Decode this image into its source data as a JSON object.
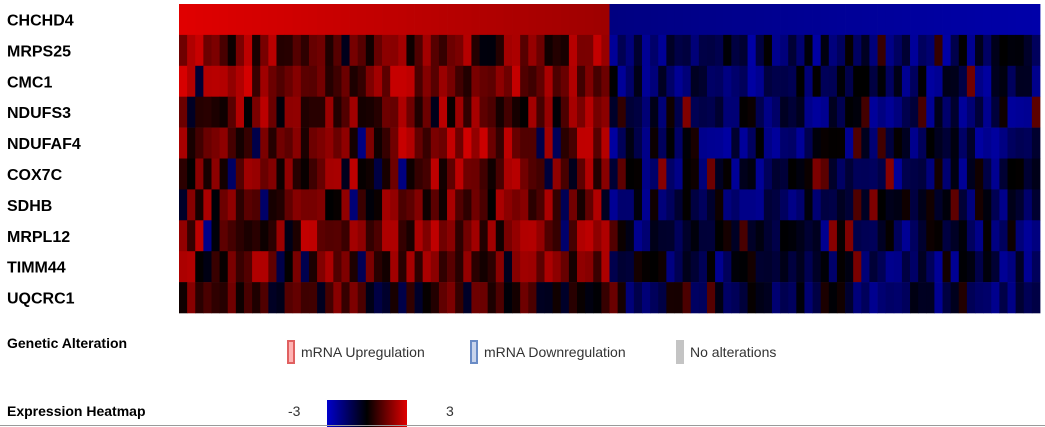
{
  "chart_data": {
    "type": "heatmap",
    "rows": [
      "CHCHD4",
      "MRPS25",
      "CMC1",
      "NDUFS3",
      "NDUFAF4",
      "COX7C",
      "SDHB",
      "MRPL12",
      "TIMM44",
      "UQCRC1"
    ],
    "columns": 106,
    "split_column": 53,
    "value_range": [
      -3,
      3
    ],
    "row_mean_high": [
      2.6,
      1.4,
      1.6,
      1.2,
      1.5,
      1.3,
      1.1,
      1.4,
      1.1,
      0.6
    ],
    "row_mean_low": [
      -2.2,
      -1.2,
      -1.1,
      -1.0,
      -1.1,
      -1.0,
      -0.9,
      -1.0,
      -1.0,
      -0.9
    ],
    "colors": {
      "high": "#e00000",
      "mid": "#000000",
      "low": "#0000cc"
    }
  },
  "legend": {
    "alteration_title": "Genetic Alteration",
    "items": [
      {
        "label": "mRNA Upregulation",
        "fill": "#ffb3b3",
        "border": "#e06060"
      },
      {
        "label": "mRNA Downregulation",
        "fill": "#c8d4ec",
        "border": "#6a8cc6"
      },
      {
        "label": "No alterations",
        "fill": "#c4c4c4",
        "border": "#c4c4c4"
      }
    ],
    "heatmap_title": "Expression Heatmap",
    "scale_min": "-3",
    "scale_max": "3"
  }
}
